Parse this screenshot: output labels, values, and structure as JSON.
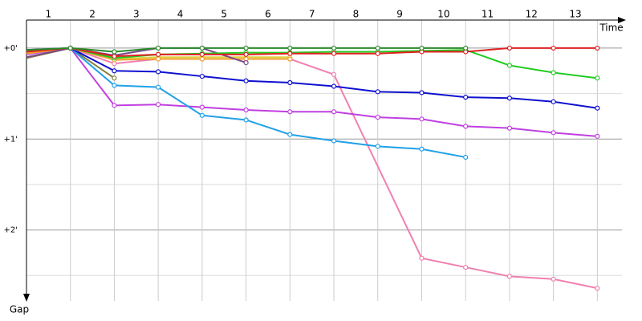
{
  "chart_data": {
    "type": "line",
    "x_label": "Time",
    "y_label": "Gap",
    "xlim": [
      0,
      13.56
    ],
    "ylim": [
      -0.37,
      2.78
    ],
    "y_inverted": true,
    "xticks": [
      1,
      2,
      3,
      4,
      5,
      6,
      7,
      8,
      9,
      10,
      11,
      12,
      13
    ],
    "yticks": [
      {
        "value": 0,
        "label": "+0'"
      },
      {
        "value": 1,
        "label": "+1'"
      },
      {
        "value": 2,
        "label": "+2'"
      }
    ],
    "yminor": [
      0.5,
      1.5,
      2.5
    ],
    "grid": true,
    "series": [
      {
        "name": "olive",
        "color": "#808040",
        "x": [
          0,
          1,
          2
        ],
        "values": [
          0.11,
          0,
          0.33
        ]
      },
      {
        "name": "pink",
        "color": "#f080b0",
        "x": [
          0,
          1,
          2,
          3,
          4,
          5,
          6,
          7,
          9,
          10,
          11,
          12,
          13
        ],
        "values": [
          0.05,
          0,
          0.17,
          0.12,
          0.12,
          0.12,
          0.12,
          0.29,
          2.31,
          2.41,
          2.51,
          2.54,
          2.64
        ]
      },
      {
        "name": "magenta",
        "color": "#c040e0",
        "x": [
          0,
          1,
          2,
          3,
          4,
          5,
          6,
          7,
          8,
          9,
          10,
          11,
          12,
          13
        ],
        "values": [
          0.07,
          0,
          0.63,
          0.62,
          0.65,
          0.68,
          0.7,
          0.7,
          0.76,
          0.78,
          0.86,
          0.88,
          0.93,
          0.97
        ]
      },
      {
        "name": "light-blue",
        "color": "#20a0e8",
        "x": [
          0,
          1,
          2,
          3,
          4,
          5,
          6,
          7,
          8,
          9,
          10
        ],
        "values": [
          0.03,
          0,
          0.41,
          0.43,
          0.74,
          0.79,
          0.95,
          1.02,
          1.08,
          1.11,
          1.2
        ]
      },
      {
        "name": "blue",
        "color": "#1010d0",
        "x": [
          0,
          1,
          2,
          3,
          4,
          5,
          6,
          7,
          8,
          9,
          10,
          11,
          12,
          13
        ],
        "values": [
          0.02,
          0,
          0.25,
          0.26,
          0.31,
          0.36,
          0.38,
          0.42,
          0.48,
          0.49,
          0.54,
          0.55,
          0.59,
          0.66
        ]
      },
      {
        "name": "yellow",
        "color": "#e0d040",
        "x": [
          0,
          1,
          2,
          3,
          4,
          5,
          6
        ],
        "values": [
          0.05,
          0,
          0.12,
          0.1,
          0.1,
          0.1,
          0.1
        ]
      },
      {
        "name": "orange",
        "color": "#f0a030",
        "x": [
          0,
          1,
          2,
          3,
          4,
          5,
          6
        ],
        "values": [
          0.06,
          0,
          0.13,
          0.12,
          0.12,
          0.12,
          0.12
        ]
      },
      {
        "name": "purple-gray",
        "color": "#7a4a8a",
        "x": [
          0,
          1,
          2,
          3,
          4,
          5
        ],
        "values": [
          0.1,
          0,
          0.08,
          0,
          0,
          0.16
        ]
      },
      {
        "name": "light-green",
        "color": "#22cc22",
        "x": [
          0,
          1,
          2,
          3,
          4,
          5,
          6,
          7,
          8,
          9,
          10,
          11,
          12,
          13
        ],
        "values": [
          0.03,
          0,
          0.11,
          0.07,
          0.06,
          0.05,
          0.05,
          0.04,
          0.04,
          0.03,
          0.02,
          0.19,
          0.27,
          0.33
        ]
      },
      {
        "name": "red",
        "color": "#e02020",
        "x": [
          0,
          1,
          2,
          3,
          4,
          5,
          6,
          7,
          8,
          9,
          10,
          11,
          12,
          13
        ],
        "values": [
          0.04,
          0,
          0.09,
          0.07,
          0.07,
          0.07,
          0.06,
          0.06,
          0.06,
          0.04,
          0.04,
          0,
          0,
          0
        ]
      },
      {
        "name": "dark-green",
        "color": "#2a8a2a",
        "x": [
          0,
          1,
          2,
          3,
          4,
          5,
          6,
          7,
          8,
          9,
          10
        ],
        "values": [
          0.02,
          0,
          0.04,
          0,
          0,
          0,
          0,
          0,
          0,
          0,
          0
        ]
      }
    ]
  }
}
